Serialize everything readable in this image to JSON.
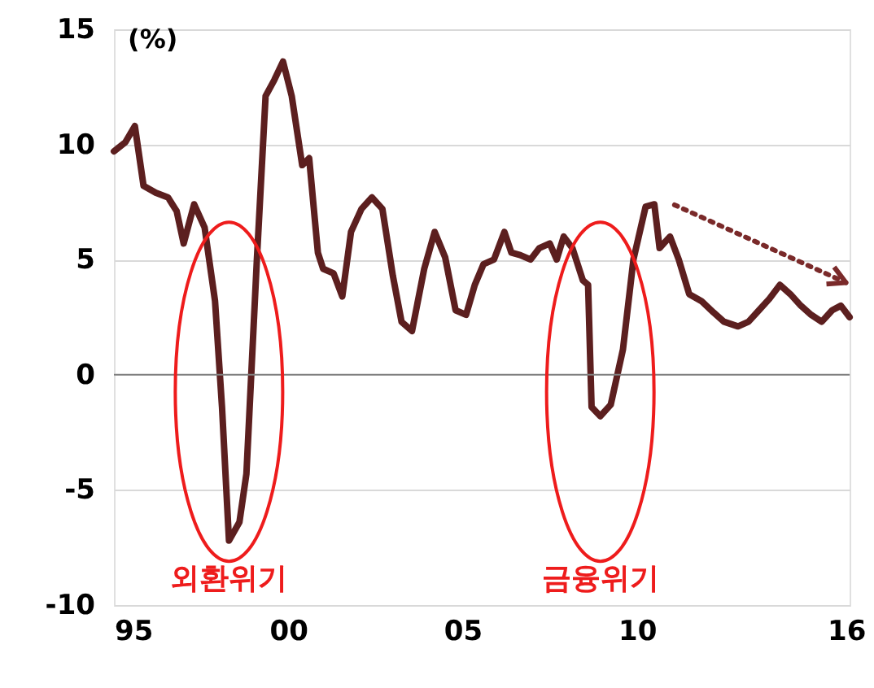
{
  "chart_data": {
    "type": "line",
    "ylabel": "(%)",
    "x": [
      1995.0,
      1995.33,
      1995.6,
      1995.85,
      1996.2,
      1996.55,
      1996.8,
      1997.0,
      1997.3,
      1997.6,
      1997.9,
      1998.1,
      1998.3,
      1998.6,
      1998.8,
      1999.1,
      1999.35,
      1999.6,
      1999.85,
      2000.1,
      2000.4,
      2000.6,
      2000.85,
      2001.0,
      2001.3,
      2001.55,
      2001.8,
      2002.1,
      2002.4,
      2002.7,
      2003.0,
      2003.25,
      2003.55,
      2003.9,
      2004.2,
      2004.5,
      2004.8,
      2005.1,
      2005.35,
      2005.6,
      2005.9,
      2006.2,
      2006.4,
      2006.65,
      2006.95,
      2007.2,
      2007.5,
      2007.7,
      2007.9,
      2008.15,
      2008.45,
      2008.6,
      2008.7,
      2008.95,
      2009.25,
      2009.6,
      2009.9,
      2010.25,
      2010.5,
      2010.65,
      2010.95,
      2011.2,
      2011.5,
      2011.85,
      2012.2,
      2012.5,
      2012.9,
      2013.2,
      2013.5,
      2013.8,
      2014.1,
      2014.4,
      2014.7,
      2015.0,
      2015.3,
      2015.6,
      2015.85,
      2016.1
    ],
    "series": [
      {
        "color": "#5c1f1f",
        "values": [
          9.7,
          10.1,
          10.8,
          8.2,
          7.9,
          7.7,
          7.1,
          5.7,
          7.4,
          6.4,
          3.2,
          -1.4,
          -7.2,
          -6.4,
          -4.3,
          5.0,
          12.1,
          12.8,
          13.6,
          12.1,
          9.1,
          9.4,
          5.3,
          4.6,
          4.4,
          3.4,
          6.2,
          7.2,
          7.7,
          7.2,
          4.3,
          2.3,
          1.9,
          4.6,
          6.2,
          5.1,
          2.8,
          2.6,
          3.9,
          4.8,
          5.0,
          6.2,
          5.3,
          5.2,
          5.0,
          5.5,
          5.7,
          5.0,
          6.0,
          5.5,
          4.1,
          3.9,
          -1.4,
          -1.8,
          -1.3,
          1.1,
          5.0,
          7.3,
          7.4,
          5.5,
          6.0,
          5.0,
          3.5,
          3.2,
          2.7,
          2.3,
          2.1,
          2.3,
          2.8,
          3.3,
          3.9,
          3.5,
          3.0,
          2.6,
          2.3,
          2.8,
          3.0,
          2.5
        ]
      }
    ],
    "xlim": [
      1995,
      2016.1
    ],
    "xticks": [
      {
        "value": 1995,
        "label": "95"
      },
      {
        "value": 2000,
        "label": "00"
      },
      {
        "value": 2005,
        "label": "05"
      },
      {
        "value": 2010,
        "label": "10"
      },
      {
        "value": 2016,
        "label": "16"
      }
    ],
    "ylim": [
      -10,
      15
    ],
    "yticks": [
      -10,
      -5,
      0,
      5,
      10,
      15
    ],
    "grid": "y",
    "line_style": "solid",
    "ref_lines": [
      {
        "axis": "y",
        "value": 0,
        "color": "#808080"
      }
    ],
    "annotations": [
      "외환위기",
      "금융위기"
    ]
  }
}
